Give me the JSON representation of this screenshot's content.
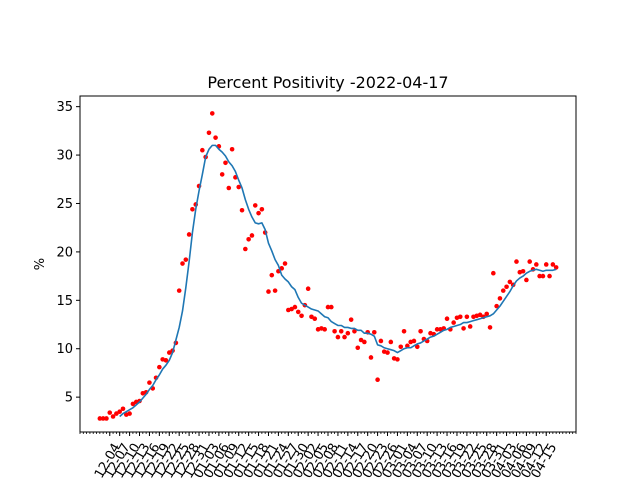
{
  "chart_data": {
    "type": "scatter",
    "title": "Percent Positivity -2022-04-17",
    "xlabel": "",
    "ylabel": "%",
    "y_ticks": [
      5,
      10,
      15,
      20,
      25,
      30,
      35
    ],
    "ylim": [
      1.4,
      36.1
    ],
    "x_tick_labels": [
      "12-04",
      "12-07",
      "12-10",
      "12-13",
      "12-16",
      "12-19",
      "12-22",
      "12-25",
      "12-28",
      "12-31",
      "01-03",
      "01-06",
      "01-09",
      "01-12",
      "01-15",
      "01-18",
      "01-21",
      "01-24",
      "01-27",
      "01-30",
      "02-02",
      "02-05",
      "02-08",
      "02-11",
      "02-14",
      "02-17",
      "02-20",
      "02-23",
      "02-26",
      "03-01",
      "03-04",
      "03-07",
      "03-10",
      "03-13",
      "03-16",
      "03-19",
      "03-22",
      "03-25",
      "03-28",
      "03-31",
      "04-03",
      "04-06",
      "04-09",
      "04-12",
      "04-15"
    ],
    "x_start": "2021-12-01",
    "x_end": "2022-04-17",
    "series": [
      {
        "kind": "points",
        "color": "#ff0000",
        "values": [
          2.8,
          2.8,
          2.8,
          3.4,
          3.0,
          3.3,
          3.5,
          3.8,
          3.2,
          3.3,
          4.3,
          4.5,
          4.6,
          5.4,
          5.5,
          6.5,
          5.9,
          7.0,
          8.1,
          8.9,
          8.8,
          9.6,
          9.8,
          10.6,
          16.0,
          18.8,
          19.2,
          21.8,
          24.4,
          24.9,
          26.8,
          30.5,
          29.8,
          32.3,
          34.3,
          31.8,
          30.9,
          28.0,
          29.2,
          26.6,
          30.6,
          27.7,
          26.7,
          24.3,
          20.3,
          21.3,
          21.7,
          24.8,
          24.0,
          24.4,
          22.0,
          15.9,
          17.6,
          16.0,
          18.0,
          18.3,
          18.8,
          14.0,
          14.1,
          14.3,
          13.8,
          13.4,
          14.5,
          16.2,
          13.3,
          13.1,
          12.0,
          12.1,
          12.0,
          14.3,
          14.3,
          11.8,
          11.2,
          11.8,
          11.2,
          11.6,
          13.0,
          11.8,
          10.1,
          10.9,
          10.7,
          11.7,
          9.1,
          11.7,
          6.8,
          10.8,
          9.7,
          9.6,
          10.7,
          9.0,
          8.9,
          10.2,
          11.8,
          10.3,
          10.7,
          10.8,
          10.2,
          11.8,
          11.0,
          10.8,
          11.6,
          11.5,
          12.0,
          12.0,
          12.1,
          13.1,
          12.0,
          12.7,
          13.2,
          13.3,
          12.1,
          13.3,
          12.3,
          13.3,
          13.4,
          13.5,
          13.3,
          13.6,
          12.2,
          17.8,
          14.4,
          15.2,
          16.0,
          16.4,
          16.9,
          16.6,
          19.0,
          17.9,
          18.0,
          17.1,
          19.0,
          18.2,
          18.7,
          17.5,
          17.5,
          18.7,
          17.5,
          18.7,
          18.4
        ]
      },
      {
        "kind": "line",
        "color": "#1f77b4",
        "values": [
          null,
          null,
          null,
          null,
          null,
          null,
          3.0,
          3.3,
          3.5,
          3.7,
          3.9,
          4.2,
          4.5,
          4.9,
          5.3,
          5.8,
          6.2,
          6.8,
          7.3,
          7.9,
          8.3,
          8.8,
          9.6,
          10.9,
          12.2,
          13.9,
          16.3,
          19.0,
          22.0,
          24.4,
          26.3,
          28.0,
          29.8,
          30.6,
          31.0,
          31.0,
          30.6,
          30.3,
          29.9,
          29.3,
          28.9,
          28.3,
          27.4,
          26.6,
          25.4,
          24.4,
          23.6,
          23.0,
          22.9,
          23.0,
          22.3,
          20.9,
          20.1,
          19.2,
          18.6,
          17.6,
          17.2,
          16.9,
          16.4,
          16.1,
          15.3,
          14.7,
          14.5,
          14.3,
          14.1,
          14.0,
          13.9,
          13.6,
          13.3,
          13.2,
          12.8,
          12.6,
          12.4,
          12.4,
          12.2,
          12.2,
          12.1,
          12.1,
          11.9,
          11.9,
          11.6,
          11.6,
          11.5,
          11.3,
          10.4,
          10.3,
          10.1,
          10.0,
          9.9,
          9.8,
          9.6,
          9.8,
          10.0,
          10.1,
          10.1,
          10.3,
          10.5,
          10.6,
          10.8,
          11.0,
          11.2,
          11.3,
          11.5,
          11.7,
          11.9,
          12.0,
          12.2,
          12.3,
          12.4,
          12.5,
          12.7,
          12.7,
          12.8,
          12.9,
          13.0,
          13.1,
          13.2,
          13.3,
          13.4,
          13.6,
          14.0,
          14.4,
          14.9,
          15.4,
          15.9,
          16.5,
          17.0,
          17.3,
          17.5,
          17.8,
          18.0,
          18.1,
          18.2,
          18.1,
          18.0,
          18.1,
          18.1,
          18.1,
          18.2
        ]
      }
    ]
  }
}
